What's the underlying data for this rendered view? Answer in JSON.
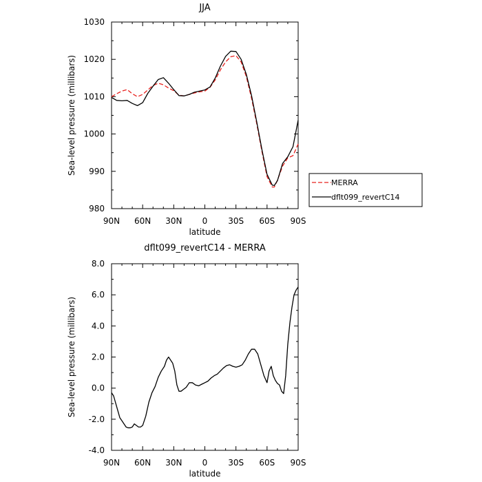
{
  "chart_data": [
    {
      "type": "line",
      "title": "JJA",
      "xlabel": "latitude",
      "ylabel": "Sea-level pressure (millibars)",
      "xlim": [
        90,
        -90
      ],
      "ylim": [
        980,
        1030
      ],
      "x_ticks": [
        90,
        60,
        30,
        0,
        -30,
        -60,
        -90
      ],
      "x_tick_labels": [
        "90N",
        "60N",
        "30N",
        "0",
        "30S",
        "60S",
        "90S"
      ],
      "y_ticks": [
        980,
        990,
        1000,
        1010,
        1020,
        1030
      ],
      "y_tick_labels": [
        "980",
        "990",
        "1000",
        "1010",
        "1020",
        "1030"
      ],
      "grid": false,
      "legend_position": "outside-right",
      "series": [
        {
          "name": "MERRA",
          "color": "#e8201c",
          "dash": "dashed",
          "x": [
            90,
            85,
            80,
            75,
            70,
            65,
            60,
            55,
            50,
            45,
            40,
            35,
            30,
            25,
            20,
            15,
            10,
            5,
            0,
            -5,
            -10,
            -15,
            -20,
            -25,
            -30,
            -35,
            -40,
            -45,
            -50,
            -55,
            -60,
            -65,
            -67,
            -70,
            -75,
            -80,
            -85,
            -90
          ],
          "values": [
            1010,
            1010.8,
            1011.5,
            1011.9,
            1010.8,
            1010,
            1010.6,
            1011.8,
            1013,
            1013.6,
            1013.2,
            1012.3,
            1011.6,
            1010.4,
            1010.2,
            1010.6,
            1011,
            1011.3,
            1011.5,
            1012.5,
            1014.5,
            1017.2,
            1019.3,
            1020.7,
            1021,
            1019.3,
            1015.4,
            1009.6,
            1002.8,
            995.4,
            988.6,
            985.8,
            985.8,
            987.6,
            991.4,
            993.6,
            994.2,
            997.3
          ]
        },
        {
          "name": "dflt099_revertC14",
          "color": "#000000",
          "dash": "solid",
          "x": [
            90,
            85,
            80,
            75,
            70,
            65,
            60,
            55,
            50,
            45,
            40,
            35,
            30,
            25,
            20,
            15,
            10,
            5,
            0,
            -5,
            -10,
            -15,
            -20,
            -25,
            -30,
            -35,
            -40,
            -45,
            -50,
            -55,
            -60,
            -65,
            -67,
            -70,
            -75,
            -80,
            -85,
            -90
          ],
          "values": [
            1009.8,
            1009,
            1008.9,
            1009,
            1008.2,
            1007.6,
            1008.4,
            1010.9,
            1012.8,
            1014.6,
            1015.1,
            1013.6,
            1011.9,
            1010.3,
            1010.2,
            1010.6,
            1011.2,
            1011.5,
            1011.8,
            1012.6,
            1015,
            1018.2,
            1020.8,
            1022.2,
            1022.1,
            1020,
            1016,
            1010.3,
            1003.3,
            995.9,
            989.2,
            986.3,
            986.2,
            987.5,
            992.1,
            993.9,
            996.6,
            1003.7
          ]
        }
      ]
    },
    {
      "type": "line",
      "title": "dflt099_revertC14 - MERRA",
      "xlabel": "latitude",
      "ylabel": "Sea-level pressure (millibars)",
      "xlim": [
        90,
        -90
      ],
      "ylim": [
        -4,
        8
      ],
      "x_ticks": [
        90,
        60,
        30,
        0,
        -30,
        -60,
        -90
      ],
      "x_tick_labels": [
        "90N",
        "60N",
        "30N",
        "0",
        "30S",
        "60S",
        "90S"
      ],
      "y_ticks": [
        -4,
        -2,
        0,
        2,
        4,
        6,
        8
      ],
      "y_tick_labels": [
        "-4.0",
        "-2.0",
        "0.0",
        "2.0",
        "4.0",
        "6.0",
        "8.0"
      ],
      "grid": false,
      "series": [
        {
          "color": "#000000",
          "dash": "solid",
          "x": [
            90,
            88,
            85,
            82,
            80,
            78,
            76,
            74,
            72,
            70,
            68,
            66,
            64,
            62,
            60,
            57,
            54,
            51,
            48,
            45,
            42,
            39,
            37,
            35,
            33,
            31,
            29,
            27,
            25,
            23,
            21,
            18,
            15,
            12,
            9,
            6,
            3,
            0,
            -3,
            -6,
            -9,
            -12,
            -15,
            -18,
            -21,
            -24,
            -27,
            -30,
            -33,
            -36,
            -39,
            -42,
            -45,
            -48,
            -51,
            -54,
            -57,
            -60,
            -62,
            -64,
            -66,
            -68,
            -70,
            -72,
            -74,
            -76,
            -78,
            -80,
            -82,
            -84,
            -86,
            -88,
            -90
          ],
          "values": [
            -0.3,
            -0.5,
            -1.2,
            -1.9,
            -2.1,
            -2.3,
            -2.5,
            -2.55,
            -2.55,
            -2.5,
            -2.3,
            -2.4,
            -2.5,
            -2.5,
            -2.4,
            -1.8,
            -0.9,
            -0.3,
            0.1,
            0.7,
            1.1,
            1.4,
            1.8,
            2.0,
            1.8,
            1.6,
            1.1,
            0.2,
            -0.2,
            -0.2,
            -0.1,
            0.05,
            0.35,
            0.35,
            0.2,
            0.15,
            0.25,
            0.35,
            0.45,
            0.65,
            0.8,
            0.9,
            1.1,
            1.3,
            1.45,
            1.5,
            1.4,
            1.35,
            1.4,
            1.5,
            1.8,
            2.2,
            2.5,
            2.5,
            2.2,
            1.5,
            0.8,
            0.35,
            1.1,
            1.4,
            0.8,
            0.5,
            0.3,
            0.2,
            -0.2,
            -0.35,
            0.8,
            2.8,
            4.2,
            5.2,
            6.0,
            6.3,
            6.5
          ]
        }
      ]
    }
  ]
}
